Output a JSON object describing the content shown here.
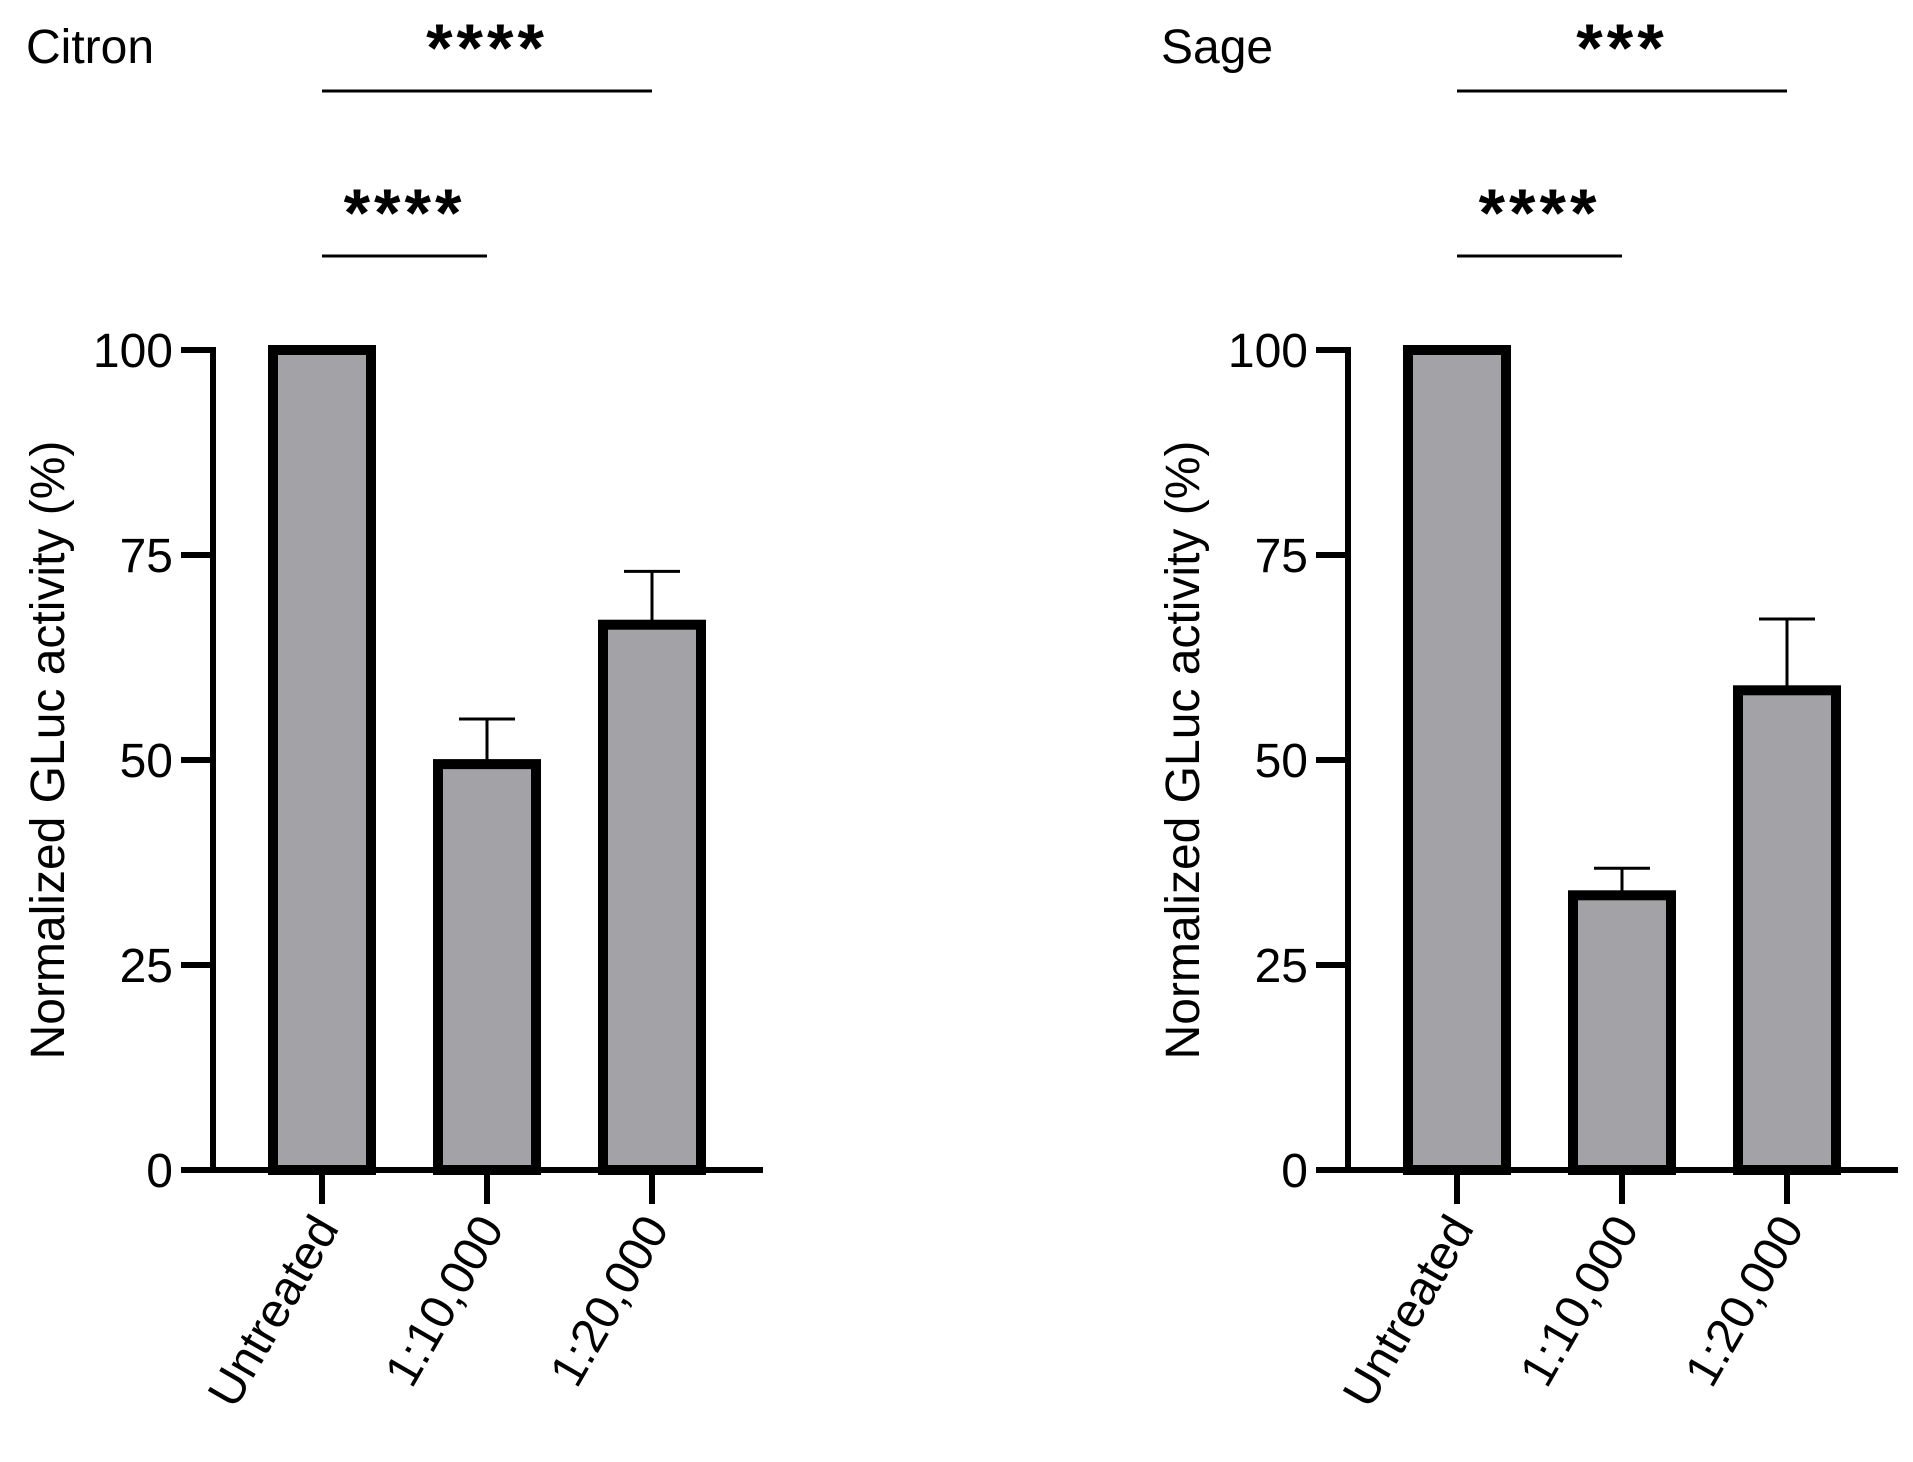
{
  "chart_data": [
    {
      "type": "bar",
      "title": "Citron",
      "categories": [
        "Untreated",
        "1:10,000",
        "1:20,000"
      ],
      "values": [
        100,
        49.5,
        66.5
      ],
      "error_upper": [
        0,
        5.5,
        6.5
      ],
      "ylabel": "Normalized GLuc activity (%)",
      "xlabel": "",
      "ylim": [
        0,
        100
      ],
      "yticks": [
        0,
        25,
        50,
        75,
        100
      ],
      "bar_fill": "#a3a2a7",
      "bar_edge": "#000000",
      "significance": [
        {
          "from": 0,
          "to": 2,
          "label": "****"
        },
        {
          "from": 0,
          "to": 1,
          "label": "****"
        }
      ]
    },
    {
      "type": "bar",
      "title": "Sage",
      "categories": [
        "Untreated",
        "1:10,000",
        "1:20,000"
      ],
      "values": [
        100,
        33.5,
        58.5
      ],
      "error_upper": [
        0,
        3.3,
        8.7
      ],
      "ylabel": "Normalized GLuc activity (%)",
      "xlabel": "",
      "ylim": [
        0,
        100
      ],
      "yticks": [
        0,
        25,
        50,
        75,
        100
      ],
      "bar_fill": "#a3a2a7",
      "bar_edge": "#000000",
      "significance": [
        {
          "from": 0,
          "to": 2,
          "label": "***"
        },
        {
          "from": 0,
          "to": 1,
          "label": "****"
        }
      ]
    }
  ]
}
